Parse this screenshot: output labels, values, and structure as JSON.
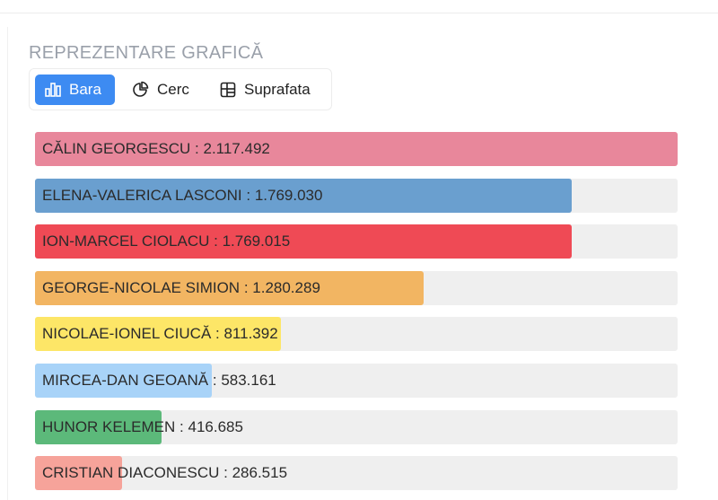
{
  "section": {
    "title": "REPREZENTARE GRAFICĂ"
  },
  "view_toggle": {
    "options": [
      {
        "label": "Bara",
        "icon": "bar-chart-icon",
        "active": true
      },
      {
        "label": "Cerc",
        "icon": "pie-chart-icon",
        "active": false
      },
      {
        "label": "Suprafata",
        "icon": "treemap-icon",
        "active": false
      }
    ]
  },
  "chart_data": {
    "type": "bar",
    "orientation": "horizontal",
    "title": "",
    "xlabel": "",
    "ylabel": "",
    "xlim": [
      0,
      2117492
    ],
    "grid": false,
    "categories": [
      "CĂLIN GEORGESCU",
      "ELENA-VALERICA LASCONI",
      "ION-MARCEL CIOLACU",
      "GEORGE-NICOLAE SIMION",
      "NICOLAE-IONEL CIUCĂ",
      "MIRCEA-DAN GEOANĂ",
      "HUNOR KELEMEN",
      "CRISTIAN DIACONESCU"
    ],
    "values": [
      2117492,
      1769030,
      1769015,
      1280289,
      811392,
      583161,
      416685,
      286515
    ],
    "value_labels": [
      "2.117.492",
      "1.769.030",
      "1.769.015",
      "1.280.289",
      "811.392",
      "583.161",
      "416.685",
      "286.515"
    ],
    "colors": [
      "#e8879b",
      "#6a9fcf",
      "#ef4a55",
      "#f2b562",
      "#fde667",
      "#a8d3f8",
      "#5cb97a",
      "#f6a39a"
    ]
  }
}
